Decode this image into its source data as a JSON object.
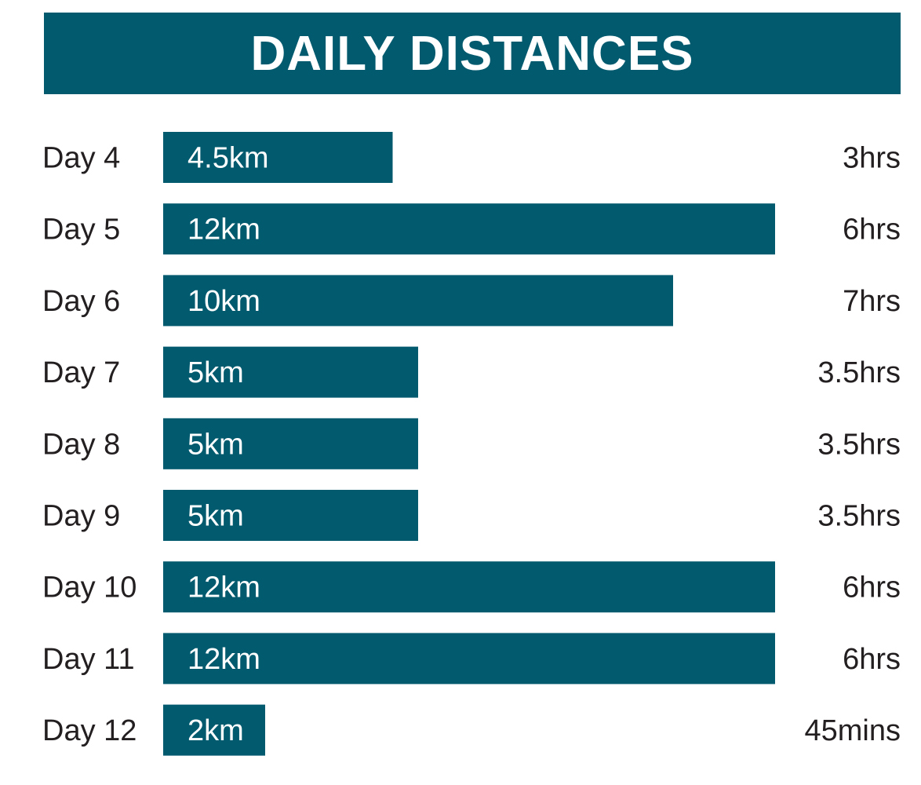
{
  "chart_data": {
    "type": "bar",
    "orientation": "horizontal",
    "title": "DAILY DISTANCES",
    "categories": [
      "Day 4",
      "Day 5",
      "Day 6",
      "Day 7",
      "Day 8",
      "Day 9",
      "Day 10",
      "Day 11",
      "Day 12"
    ],
    "values": [
      4.5,
      12,
      10,
      5,
      5,
      5,
      12,
      12,
      2
    ],
    "unit": "km",
    "bar_labels": [
      "4.5km",
      "12km",
      "10km",
      "5km",
      "5km",
      "5km",
      "12km",
      "12km",
      "2km"
    ],
    "durations": [
      "3hrs",
      "6hrs",
      "7hrs",
      "3.5hrs",
      "3.5hrs",
      "3.5hrs",
      "6hrs",
      "6hrs",
      "45mins"
    ],
    "xlim": [
      0,
      12
    ],
    "grid": false,
    "legend": "none"
  },
  "colors": {
    "bar": "#025a6e",
    "banner": "#025a6e",
    "text": "#231f20",
    "bar_text": "#ffffff"
  }
}
